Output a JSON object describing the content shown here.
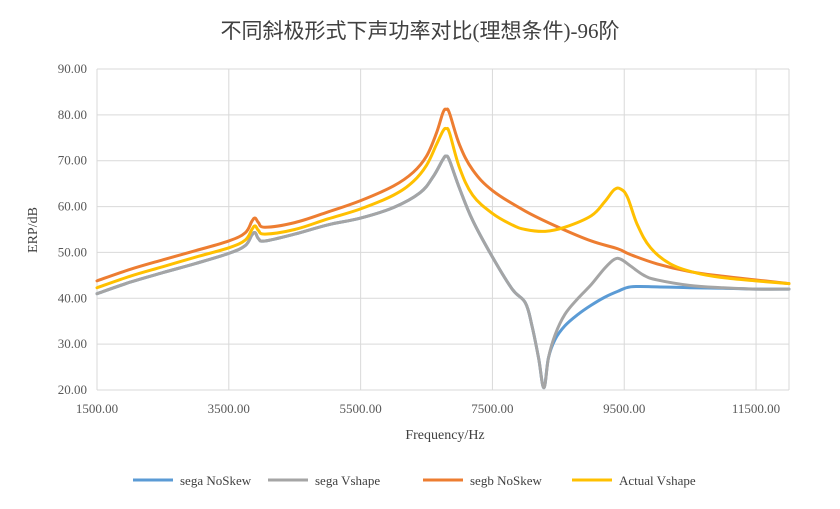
{
  "chart_data": {
    "type": "line",
    "title": "不同斜极形式下声功率对比(理想条件)-96阶",
    "xlabel": "Frequency/Hz",
    "ylabel": "ERP/dB",
    "xlim": [
      1500,
      12000
    ],
    "ylim": [
      20,
      90
    ],
    "xticks": [
      1500,
      3500,
      5500,
      7500,
      9500,
      11500
    ],
    "xtick_labels": [
      "1500.00",
      "3500.00",
      "5500.00",
      "7500.00",
      "9500.00",
      "11500.00"
    ],
    "yticks": [
      20,
      30,
      40,
      50,
      60,
      70,
      80,
      90
    ],
    "ytick_labels": [
      "20.00",
      "30.00",
      "40.00",
      "50.00",
      "60.00",
      "70.00",
      "80.00",
      "90.00"
    ],
    "grid": "vertical and horizontal",
    "legend_position": "bottom",
    "series": [
      {
        "name": "sega NoSkew",
        "color": "#5B9BD5",
        "points": [
          [
            1500,
            41
          ],
          [
            2000,
            43.5
          ],
          [
            2500,
            45.6
          ],
          [
            3000,
            47.6
          ],
          [
            3500,
            49.8
          ],
          [
            3750,
            51.5
          ],
          [
            3850,
            53.8
          ],
          [
            3900,
            54.3
          ],
          [
            3950,
            53
          ],
          [
            4050,
            52.5
          ],
          [
            4500,
            54
          ],
          [
            5000,
            56
          ],
          [
            5500,
            57.5
          ],
          [
            6000,
            59.8
          ],
          [
            6400,
            63
          ],
          [
            6600,
            66.5
          ],
          [
            6750,
            70.3
          ],
          [
            6800,
            71
          ],
          [
            6850,
            70
          ],
          [
            7000,
            64
          ],
          [
            7200,
            57
          ],
          [
            7500,
            49
          ],
          [
            7800,
            42
          ],
          [
            8000,
            39
          ],
          [
            8100,
            34
          ],
          [
            8200,
            27
          ],
          [
            8280,
            20.5
          ],
          [
            8350,
            27
          ],
          [
            8450,
            31
          ],
          [
            8600,
            34
          ],
          [
            8800,
            36.5
          ],
          [
            9000,
            38.5
          ],
          [
            9200,
            40.2
          ],
          [
            9400,
            41.5
          ],
          [
            9600,
            42.5
          ],
          [
            10000,
            42.5
          ],
          [
            10500,
            42.3
          ],
          [
            11000,
            42.2
          ],
          [
            11500,
            42
          ],
          [
            12000,
            42
          ]
        ]
      },
      {
        "name": "sega Vshape",
        "color": "#A5A5A5",
        "points": [
          [
            1500,
            41
          ],
          [
            2000,
            43.5
          ],
          [
            2500,
            45.6
          ],
          [
            3000,
            47.6
          ],
          [
            3500,
            49.8
          ],
          [
            3750,
            51.5
          ],
          [
            3850,
            53.8
          ],
          [
            3900,
            54.3
          ],
          [
            3950,
            53
          ],
          [
            4050,
            52.5
          ],
          [
            4500,
            54
          ],
          [
            5000,
            56
          ],
          [
            5500,
            57.5
          ],
          [
            6000,
            59.8
          ],
          [
            6400,
            63
          ],
          [
            6600,
            66.5
          ],
          [
            6750,
            70.3
          ],
          [
            6800,
            71
          ],
          [
            6850,
            70
          ],
          [
            7000,
            64
          ],
          [
            7200,
            57
          ],
          [
            7500,
            49
          ],
          [
            7800,
            42
          ],
          [
            8000,
            39
          ],
          [
            8100,
            34
          ],
          [
            8200,
            27
          ],
          [
            8280,
            20.5
          ],
          [
            8350,
            27
          ],
          [
            8450,
            32
          ],
          [
            8600,
            36.5
          ],
          [
            8800,
            40
          ],
          [
            9000,
            43
          ],
          [
            9200,
            46.5
          ],
          [
            9350,
            48.5
          ],
          [
            9450,
            48.5
          ],
          [
            9600,
            47
          ],
          [
            9800,
            45
          ],
          [
            10000,
            44
          ],
          [
            10500,
            42.8
          ],
          [
            11000,
            42.3
          ],
          [
            11500,
            42
          ],
          [
            12000,
            42
          ]
        ]
      },
      {
        "name": "segb NoSkew",
        "color": "#ED7D31",
        "points": [
          [
            1500,
            43.8
          ],
          [
            2000,
            46.3
          ],
          [
            2500,
            48.4
          ],
          [
            3000,
            50.4
          ],
          [
            3500,
            52.5
          ],
          [
            3750,
            54.3
          ],
          [
            3850,
            56.8
          ],
          [
            3900,
            57.5
          ],
          [
            3950,
            56.5
          ],
          [
            4050,
            55.5
          ],
          [
            4500,
            56.5
          ],
          [
            5000,
            58.8
          ],
          [
            5500,
            61.3
          ],
          [
            6000,
            64.5
          ],
          [
            6300,
            67.5
          ],
          [
            6500,
            71
          ],
          [
            6650,
            76
          ],
          [
            6750,
            80.5
          ],
          [
            6800,
            81.2
          ],
          [
            6850,
            80.3
          ],
          [
            7000,
            73.5
          ],
          [
            7200,
            68
          ],
          [
            7500,
            63.5
          ],
          [
            8000,
            59
          ],
          [
            8500,
            55.5
          ],
          [
            9000,
            52.5
          ],
          [
            9400,
            50.8
          ],
          [
            9600,
            49.5
          ],
          [
            10000,
            47.5
          ],
          [
            10500,
            45.8
          ],
          [
            11000,
            44.8
          ],
          [
            11500,
            44
          ],
          [
            12000,
            43.2
          ]
        ]
      },
      {
        "name": "Actual Vshape",
        "color": "#FFC000",
        "points": [
          [
            1500,
            42.3
          ],
          [
            2000,
            44.8
          ],
          [
            2500,
            46.9
          ],
          [
            3000,
            49
          ],
          [
            3500,
            51
          ],
          [
            3750,
            52.7
          ],
          [
            3850,
            55
          ],
          [
            3900,
            55.8
          ],
          [
            3950,
            54.8
          ],
          [
            4050,
            54
          ],
          [
            4500,
            55
          ],
          [
            5000,
            57.3
          ],
          [
            5500,
            59.5
          ],
          [
            6000,
            62.5
          ],
          [
            6300,
            65.5
          ],
          [
            6500,
            69
          ],
          [
            6650,
            73.5
          ],
          [
            6750,
            76.5
          ],
          [
            6800,
            77
          ],
          [
            6850,
            76
          ],
          [
            7000,
            68.5
          ],
          [
            7200,
            62.5
          ],
          [
            7500,
            58.5
          ],
          [
            7800,
            56
          ],
          [
            8000,
            55
          ],
          [
            8300,
            54.6
          ],
          [
            8600,
            55.5
          ],
          [
            9000,
            58
          ],
          [
            9200,
            61
          ],
          [
            9350,
            63.7
          ],
          [
            9450,
            63.8
          ],
          [
            9550,
            62
          ],
          [
            9700,
            56
          ],
          [
            9900,
            51
          ],
          [
            10200,
            47.5
          ],
          [
            10600,
            45.5
          ],
          [
            11000,
            44.5
          ],
          [
            11500,
            43.8
          ],
          [
            12000,
            43.2
          ]
        ]
      }
    ]
  }
}
